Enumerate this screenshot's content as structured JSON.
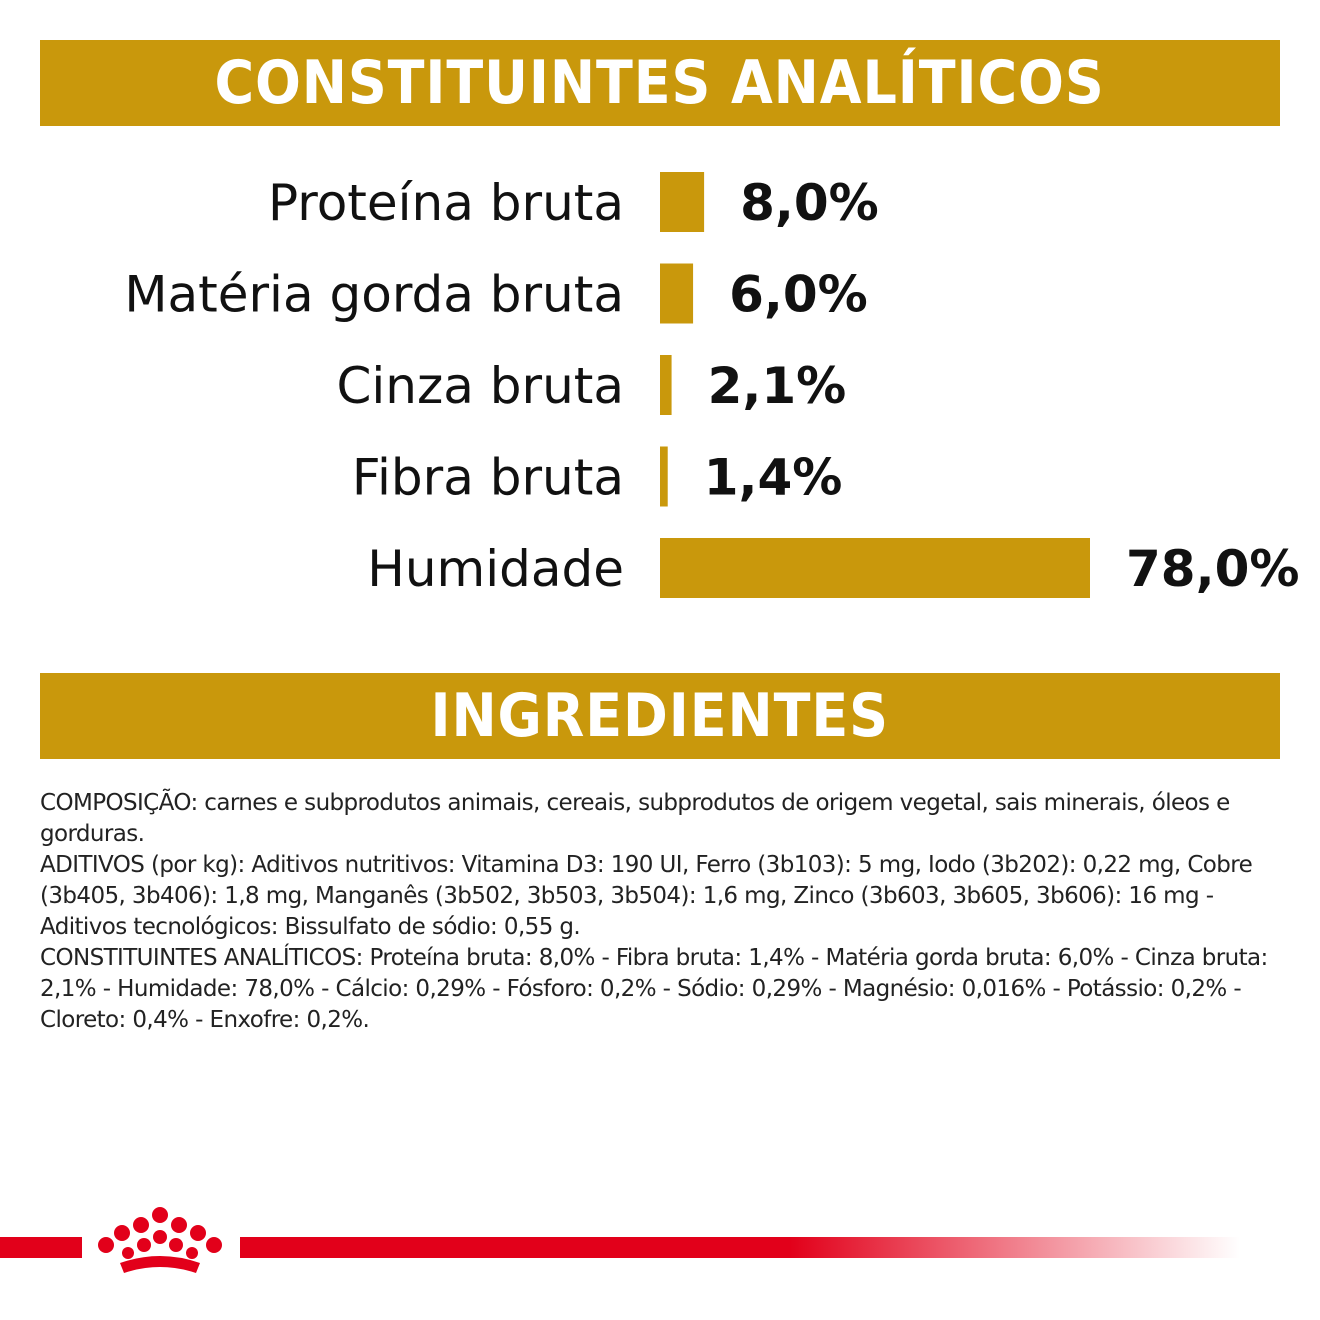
{
  "headings": {
    "analytical": "CONSTITUINTES ANALÍTICOS",
    "ingredients": "INGREDIENTES"
  },
  "chart_data": {
    "type": "bar",
    "orientation": "horizontal",
    "categories": [
      "Proteína bruta",
      "Matéria gorda bruta",
      "Cinza bruta",
      "Fibra bruta",
      "Humidade"
    ],
    "values": [
      8.0,
      6.0,
      2.1,
      1.4,
      78.0
    ],
    "value_labels": [
      "8,0%",
      "6,0%",
      "2,1%",
      "1,4%",
      "78,0%"
    ],
    "unit": "%",
    "bar_color": "#c9980c",
    "xlim": [
      0,
      78
    ],
    "grid": false,
    "legend": "none"
  },
  "ingredients": {
    "composition": "COMPOSIÇÃO: carnes e subprodutos animais, cereais, subprodutos de origem vegetal, sais minerais, óleos e gorduras.",
    "additives": "ADITIVOS (por kg): Aditivos nutritivos: Vitamina D3: 190 UI, Ferro (3b103): 5 mg, Iodo (3b202): 0,22 mg, Cobre (3b405, 3b406): 1,8 mg, Manganês (3b502, 3b503, 3b504): 1,6 mg, Zinco (3b603, 3b605, 3b606): 16 mg - Aditivos tecnológicos: Bissulfato de sódio: 0,55 g.",
    "analytical": "CONSTITUINTES ANALÍTICOS: Proteína bruta: 8,0% - Fibra bruta: 1,4% - Matéria gorda bruta: 6,0% - Cinza bruta: 2,1% - Humidade: 78,0% - Cálcio: 0,29% - Fósforo: 0,2% - Sódio: 0,29% - Magnésio: 0,016% - Potássio: 0,2% - Cloreto: 0,4% - Enxofre: 0,2%."
  },
  "brand": {
    "accent_color": "#e2001a",
    "logo_icon": "crown-icon"
  }
}
